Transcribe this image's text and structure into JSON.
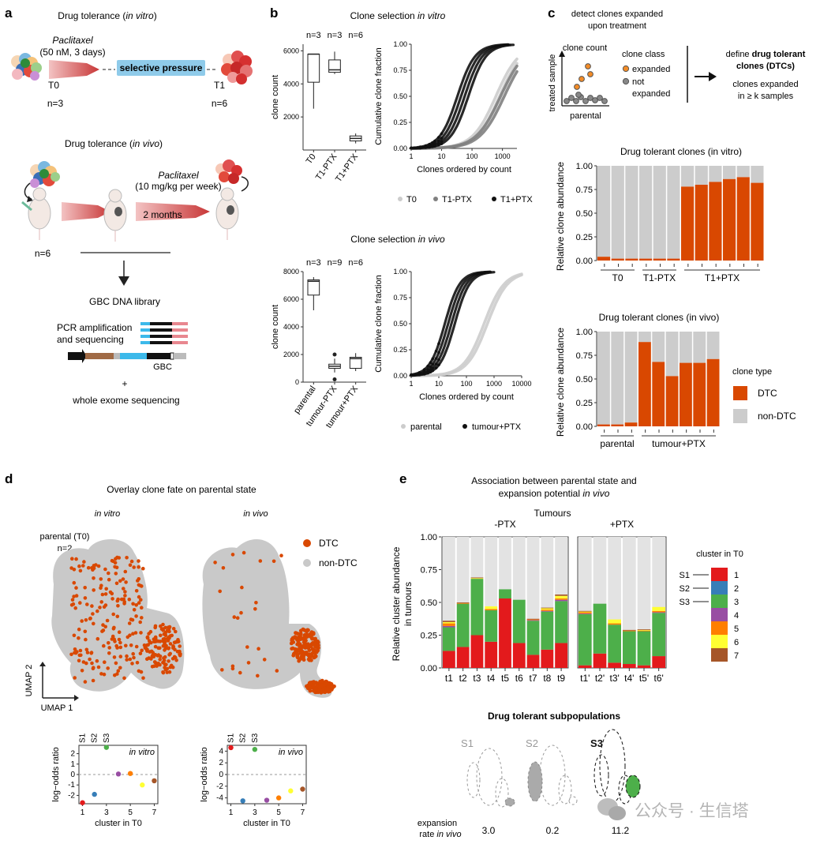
{
  "colors": {
    "dtc": "#d94801",
    "non_dtc": "#cccccc",
    "grey_bar": "#e3e3e3",
    "red_arrow": "#d43f3f",
    "selective_box": "#8fcbea",
    "clusters": [
      "#e31a1c",
      "#377eb8",
      "#4daf4a",
      "#984ea3",
      "#ff7f00",
      "#ffff33",
      "#a65628"
    ]
  },
  "panel_a": {
    "label": "a",
    "vitro_title": [
      "Drug tolerance (",
      "in vitro",
      ")"
    ],
    "ptx_drug": "Paclitaxel",
    "ptx_dose_vitro": "(50 nM, 3 days)",
    "selective": "selective pressure",
    "t0": "T0",
    "n3": "n=3",
    "t1": "T1",
    "n6": "n=6",
    "vivo_title": [
      "Drug tolerance (",
      "in vivo",
      ")"
    ],
    "ptx_dose_vivo": "(10 mg/kg per week)",
    "months": "2 months",
    "n6b": "n=6",
    "gbc_library": "GBC DNA library",
    "pcr1": "PCR amplification",
    "pcr2": "and sequencing",
    "gbc": "GBC",
    "plus": "+",
    "wes": "whole exome sequencing"
  },
  "panel_b": {
    "label": "b",
    "vitro_title": [
      "Clone selection ",
      "in vitro"
    ],
    "vivo_title": [
      "Clone selection ",
      "in vivo"
    ],
    "box_vitro_n": [
      "n=3",
      "n=3",
      "n=6"
    ],
    "box_vivo_n": [
      "n=3",
      "n=9",
      "n=6"
    ],
    "ylabel_count": "clone count",
    "ylabel_cum": "Cumulative clone fraction",
    "xlabel_cum": "Clones ordered by count",
    "legend_vitro": [
      "T0",
      "T1-PTX",
      "T1+PTX"
    ],
    "legend_vivo": [
      "parental",
      "tumour+PTX"
    ]
  },
  "panel_c": {
    "label": "c",
    "detect": "detect clones expanded",
    "detect2": "upon treatment",
    "clone_count": "clone count",
    "treated_sample": "treated sample",
    "parental": "parental",
    "clone_class": "clone class",
    "expanded": "expanded",
    "not": "not",
    "expanded2": "expanded",
    "define1": "define",
    "define_bold": "drug tolerant",
    "define_bold2": "clones (DTCs)",
    "kexp1": "clones expanded",
    "kexp2": "in ≥ k samples",
    "ylabel": "Relative clone abundance",
    "clone_type": "clone type",
    "legend": [
      "DTC",
      "non-DTC"
    ]
  },
  "panel_d": {
    "label": "d",
    "title": "Overlay clone fate on parental state",
    "vitro": "in vitro",
    "vivo": "in vivo",
    "parental_t0": "parental (T0)",
    "n2": "n=2",
    "legend": [
      "DTC",
      "non-DTC"
    ],
    "umap1": "UMAP 1",
    "umap2": "UMAP 2",
    "lo_ylabel": "log−odds ratio",
    "lo_xlabel": "cluster in T0",
    "s_labels": [
      "S1",
      "S2",
      "S3"
    ]
  },
  "panel_e": {
    "label": "e",
    "title1": "Association between parental state and",
    "title2": [
      "expansion potential ",
      "in vivo"
    ],
    "tumours": "Tumours",
    "ylabel1": "Relative cluster abundance",
    "ylabel2": "in tumours",
    "legend_title": "cluster in T0",
    "s_labels": [
      "S1",
      "S2",
      "S3"
    ],
    "dtc_subpop": "Drug tolerant subpopulations",
    "subpop_labels": [
      "S1",
      "S2",
      "S3"
    ],
    "expansion1": "expansion",
    "expansion2": [
      "rate ",
      "in vivo"
    ],
    "rates": [
      "3.0",
      "0.2",
      "11.2"
    ]
  },
  "watermark": "公众号 · 生信塔",
  "chart_data": [
    {
      "id": "b-box-vitro",
      "type": "box",
      "title": "Clone selection in vitro",
      "ylabel": "clone count",
      "ylim": [
        0,
        6400
      ],
      "yticks": [
        2000,
        4000,
        6000
      ],
      "categories": [
        "T0",
        "T1-PTX",
        "T1+PTX"
      ],
      "boxes": [
        {
          "min": 2500,
          "q1": 4100,
          "median": 5800,
          "q3": 5800,
          "max": 5800
        },
        {
          "min": 4600,
          "q1": 4700,
          "median": 4850,
          "q3": 5450,
          "max": 5950
        },
        {
          "min": 400,
          "q1": 550,
          "median": 700,
          "q3": 850,
          "max": 1000
        }
      ]
    },
    {
      "id": "b-cum-vitro",
      "type": "scatter",
      "xscale": "log",
      "xlabel": "Clones ordered by count",
      "ylabel": "Cumulative clone fraction",
      "xticks": [
        1,
        10,
        100,
        1000
      ],
      "yticks": [
        0,
        0.25,
        0.5,
        0.75,
        1.0
      ],
      "xlim": [
        1,
        3000
      ],
      "series": [
        {
          "name": "T0",
          "color": "#cccccc",
          "mid": 700,
          "steep": 1.0
        },
        {
          "name": "T1-PTX",
          "color": "#808080",
          "mid": 1000,
          "steep": 1.05
        },
        {
          "name": "T1+PTX",
          "color": "#111111",
          "mid": 50,
          "steep": 0.75
        }
      ]
    },
    {
      "id": "b-box-vivo",
      "type": "box",
      "title": "Clone selection in vivo",
      "ylabel": "clone count",
      "ylim": [
        0,
        8000
      ],
      "yticks": [
        0,
        2000,
        4000,
        6000,
        8000
      ],
      "categories": [
        "parental",
        "tumour-PTX",
        "tumour+PTX"
      ],
      "boxes": [
        {
          "min": 5200,
          "q1": 6300,
          "median": 7300,
          "q3": 7400,
          "max": 7600
        },
        {
          "min": 700,
          "q1": 1000,
          "median": 1150,
          "q3": 1300,
          "max": 1700,
          "outliers": [
            2000,
            200
          ]
        },
        {
          "min": 800,
          "q1": 1000,
          "median": 1700,
          "q3": 1800,
          "max": 2100
        }
      ]
    },
    {
      "id": "b-cum-vivo",
      "type": "scatter",
      "xscale": "log",
      "xlabel": "Clones ordered by count",
      "ylabel": "Cumulative clone fraction",
      "xticks": [
        1,
        10,
        100,
        1000,
        10000
      ],
      "yticks": [
        0,
        0.25,
        0.5,
        0.75,
        1.0
      ],
      "xlim": [
        1,
        10000
      ],
      "series": [
        {
          "name": "parental",
          "color": "#cccccc",
          "mid": 500,
          "steep": 0.95
        },
        {
          "name": "tumour+PTX",
          "color": "#111111",
          "mid": 25,
          "steep": 0.7
        }
      ]
    },
    {
      "id": "c-vitro",
      "type": "bar",
      "title": "Drug tolerant clones (in vitro)",
      "ylabel": "Relative clone abundance",
      "ylim": [
        0,
        1
      ],
      "yticks": [
        0,
        0.25,
        0.5,
        0.75,
        1.0
      ],
      "groups": [
        {
          "label": "T0",
          "n": 3
        },
        {
          "label": "T1-PTX",
          "n": 3
        },
        {
          "label": "T1+PTX",
          "n": 6
        }
      ],
      "series": [
        {
          "name": "DTC",
          "values": [
            0.04,
            0.02,
            0.02,
            0.02,
            0.02,
            0.02,
            0.78,
            0.8,
            0.83,
            0.86,
            0.88,
            0.82
          ]
        }
      ]
    },
    {
      "id": "c-vivo",
      "type": "bar",
      "title": "Drug tolerant clones (in vivo)",
      "ylabel": "Relative clone abundance",
      "ylim": [
        0,
        1
      ],
      "yticks": [
        0,
        0.25,
        0.5,
        0.75,
        1.0
      ],
      "groups": [
        {
          "label": "parental",
          "n": 3
        },
        {
          "label": "tumour+PTX",
          "n": 6
        }
      ],
      "series": [
        {
          "name": "DTC",
          "values": [
            0.02,
            0.02,
            0.04,
            0.89,
            0.68,
            0.53,
            0.67,
            0.67,
            0.71
          ]
        }
      ]
    },
    {
      "id": "d-lo-vitro",
      "type": "scatter",
      "title": "in vitro",
      "xlabel": "cluster in T0",
      "ylabel": "log−odds ratio",
      "x": [
        1,
        2,
        3,
        4,
        5,
        6,
        7
      ],
      "y": [
        -2.7,
        -1.9,
        2.6,
        0.05,
        0.1,
        -1.0,
        -0.6
      ],
      "ylim": [
        -2.8,
        2.8
      ],
      "yticks": [
        -2,
        -1,
        0,
        1,
        2
      ],
      "xticks": [
        1,
        3,
        5,
        7
      ]
    },
    {
      "id": "d-lo-vivo",
      "type": "scatter",
      "title": "in vivo",
      "xlabel": "cluster in T0",
      "ylabel": "log−odds ratio",
      "x": [
        1,
        2,
        3,
        4,
        5,
        6,
        7
      ],
      "y": [
        4.6,
        -4.5,
        4.3,
        -4.4,
        -4.0,
        -2.8,
        -2.5
      ],
      "ylim": [
        -5,
        5
      ],
      "yticks": [
        -4,
        -2,
        0,
        2,
        4
      ],
      "xticks": [
        1,
        3,
        5,
        7
      ]
    },
    {
      "id": "e-minus",
      "type": "stacked_bar",
      "title": "-PTX",
      "ylabel": "Relative cluster abundance in tumours",
      "ylim": [
        0,
        1
      ],
      "yticks": [
        0,
        0.25,
        0.5,
        0.75,
        1.0
      ],
      "categories": [
        "t1",
        "t2",
        "t3",
        "t4",
        "t5",
        "t6",
        "t7",
        "t8",
        "t9"
      ],
      "series": [
        {
          "name": "1",
          "values": [
            0.13,
            0.16,
            0.25,
            0.2,
            0.53,
            0.19,
            0.1,
            0.14,
            0.19
          ]
        },
        {
          "name": "2",
          "values": [
            0,
            0,
            0,
            0,
            0,
            0,
            0,
            0,
            0
          ]
        },
        {
          "name": "3",
          "values": [
            0.18,
            0.33,
            0.43,
            0.24,
            0.07,
            0.33,
            0.26,
            0.29,
            0.32
          ]
        },
        {
          "name": "4",
          "values": [
            0.01,
            0,
            0,
            0,
            0,
            0,
            0.005,
            0.005,
            0.01
          ]
        },
        {
          "name": "5",
          "values": [
            0.02,
            0.005,
            0,
            0.01,
            0,
            0,
            0.005,
            0.01,
            0.01
          ]
        },
        {
          "name": "6",
          "values": [
            0.01,
            0,
            0.005,
            0.02,
            0,
            0,
            0,
            0.01,
            0.02
          ]
        },
        {
          "name": "7",
          "values": [
            0.01,
            0.005,
            0.005,
            0,
            0,
            0,
            0.005,
            0.005,
            0.01
          ]
        }
      ]
    },
    {
      "id": "e-plus",
      "type": "stacked_bar",
      "title": "+PTX",
      "ylim": [
        0,
        1
      ],
      "categories": [
        "t1'",
        "t2'",
        "t3'",
        "t4'",
        "t5'",
        "t6'"
      ],
      "series": [
        {
          "name": "1",
          "values": [
            0.02,
            0.11,
            0.04,
            0.03,
            0.02,
            0.09
          ]
        },
        {
          "name": "2",
          "values": [
            0,
            0,
            0,
            0,
            0,
            0
          ]
        },
        {
          "name": "3",
          "values": [
            0.39,
            0.38,
            0.29,
            0.25,
            0.26,
            0.33
          ]
        },
        {
          "name": "4",
          "values": [
            0.005,
            0,
            0,
            0,
            0,
            0.005
          ]
        },
        {
          "name": "5",
          "values": [
            0.01,
            0,
            0.01,
            0.005,
            0.005,
            0.01
          ]
        },
        {
          "name": "6",
          "values": [
            0.005,
            0,
            0.03,
            0,
            0.005,
            0.03
          ]
        },
        {
          "name": "7",
          "values": [
            0.005,
            0,
            0,
            0.005,
            0.005,
            0
          ]
        }
      ]
    }
  ]
}
